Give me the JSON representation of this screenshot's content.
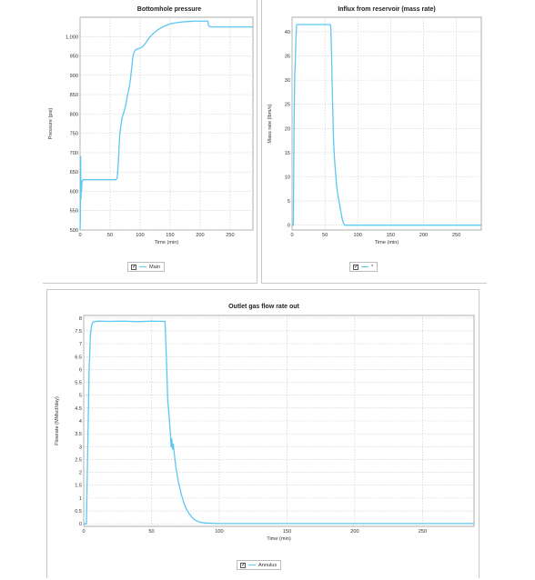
{
  "colors": {
    "series_line": "#5bc8f2",
    "grid": "#c9c9c9",
    "plot_border": "#9a9a9a"
  },
  "legend_checkbox_icon": "checkbox-checked-icon",
  "chart_data": [
    {
      "type": "line",
      "title": "Bottomhole pressure",
      "xlabel": "Time (min)",
      "ylabel": "Pressure (psi)",
      "xlim": [
        0,
        288
      ],
      "ylim": [
        500,
        1050
      ],
      "xticks": [
        0,
        50,
        100,
        150,
        200,
        250
      ],
      "xtick_labels": [
        "0",
        "50",
        "100",
        "150",
        "200",
        "250"
      ],
      "yticks": [
        500,
        550,
        600,
        650,
        700,
        750,
        800,
        850,
        900,
        950,
        1000
      ],
      "ytick_labels": [
        "500",
        "550",
        "600",
        "650",
        "700",
        "750",
        "800",
        "850",
        "900",
        "950",
        "1,000"
      ],
      "grid": true,
      "series": [
        {
          "name": "Main",
          "x": [
            0,
            0.5,
            1,
            1.5,
            2,
            2.5,
            3,
            4,
            5,
            10,
            20,
            40,
            55,
            59,
            60,
            62,
            64,
            66,
            68,
            70,
            72,
            74,
            76,
            78,
            80,
            82,
            84,
            86,
            88,
            90,
            92,
            95,
            100,
            105,
            110,
            115,
            120,
            125,
            130,
            140,
            150,
            160,
            170,
            180,
            190,
            200,
            205,
            210,
            213,
            214,
            216,
            220,
            230,
            240,
            250,
            260,
            270,
            280,
            288
          ],
          "y": [
            500,
            530,
            690,
            580,
            620,
            600,
            625,
            628,
            630,
            630,
            630,
            630,
            630,
            630,
            630,
            635,
            680,
            745,
            770,
            790,
            800,
            810,
            822,
            840,
            855,
            870,
            890,
            920,
            948,
            960,
            965,
            968,
            970,
            975,
            985,
            997,
            1005,
            1012,
            1018,
            1027,
            1033,
            1036,
            1038,
            1039,
            1040,
            1040,
            1040,
            1040,
            1040,
            1028,
            1026,
            1025,
            1025,
            1025,
            1025,
            1025,
            1025,
            1025,
            1025
          ]
        }
      ]
    },
    {
      "type": "line",
      "title": "Influx from reservoir (mass rate)",
      "xlabel": "Time (min)",
      "ylabel": "Mass rate (lbm/s)",
      "xlim": [
        0,
        288
      ],
      "ylim": [
        -1,
        43
      ],
      "xticks": [
        0,
        50,
        100,
        150,
        200,
        250
      ],
      "xtick_labels": [
        "0",
        "50",
        "100",
        "150",
        "200",
        "250"
      ],
      "yticks": [
        0,
        5,
        10,
        15,
        20,
        25,
        30,
        35,
        40
      ],
      "ytick_labels": [
        "0",
        "5",
        "10",
        "15",
        "20",
        "25",
        "30",
        "35",
        "40"
      ],
      "grid": true,
      "series": [
        {
          "name": "*",
          "x": [
            0,
            2,
            3,
            4,
            5,
            6,
            7,
            58,
            59,
            60,
            61,
            61.5,
            62,
            63,
            64,
            65,
            66,
            68,
            70,
            72,
            74,
            76,
            78,
            80,
            90,
            100,
            150,
            200,
            250,
            288
          ],
          "y": [
            0,
            0,
            20,
            31,
            34,
            39,
            41.5,
            41.5,
            41,
            36,
            29,
            26,
            24,
            18,
            15,
            13,
            11,
            8,
            6,
            4.5,
            3,
            1.5,
            0.5,
            0,
            0,
            0,
            0,
            0,
            0,
            0
          ]
        }
      ]
    },
    {
      "type": "line",
      "title": "Outlet gas flow rate out",
      "xlabel": "Time (min)",
      "ylabel": "Flowrate (MMscf/day)",
      "xlim": [
        0,
        288
      ],
      "ylim": [
        -0.1,
        8.1
      ],
      "xticks": [
        0,
        50,
        100,
        150,
        200,
        250
      ],
      "xtick_labels": [
        "0",
        "50",
        "100",
        "150",
        "200",
        "250"
      ],
      "yticks": [
        0,
        0.5,
        1,
        1.5,
        2,
        2.5,
        3,
        3.5,
        4,
        4.5,
        5,
        5.5,
        6,
        6.5,
        7,
        7.5,
        8
      ],
      "ytick_labels": [
        "0",
        "0.5",
        "1",
        "1.5",
        "2",
        "2.5",
        "3",
        "3.5",
        "4",
        "4.5",
        "5",
        "5.5",
        "6",
        "6.5",
        "7",
        "7.5",
        "8"
      ],
      "grid": true,
      "series": [
        {
          "name": "Annulus",
          "x": [
            0,
            2,
            3,
            4,
            5,
            6,
            7,
            8,
            10,
            20,
            30,
            40,
            50,
            60,
            61,
            62,
            63,
            64,
            64.5,
            65,
            65.5,
            66,
            68,
            70,
            72,
            74,
            76,
            78,
            80,
            82,
            84,
            86,
            90,
            100,
            150,
            200,
            250,
            288
          ],
          "y": [
            0,
            0,
            3,
            6,
            7.4,
            7.75,
            7.85,
            7.85,
            7.88,
            7.87,
            7.88,
            7.86,
            7.88,
            7.87,
            6.5,
            4.8,
            4.2,
            3.5,
            3.0,
            3.3,
            2.9,
            3.1,
            2.2,
            1.6,
            1.15,
            0.8,
            0.55,
            0.38,
            0.25,
            0.15,
            0.1,
            0.06,
            0.03,
            0.01,
            0.01,
            0.01,
            0.01,
            0.01
          ]
        }
      ]
    }
  ]
}
